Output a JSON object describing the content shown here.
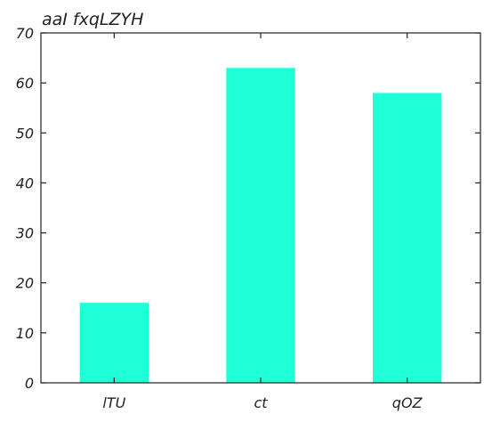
{
  "chart_data": {
    "type": "bar",
    "title": "aaI fxqLZYH",
    "xlabel": "",
    "ylabel": "",
    "categories": [
      "lTU",
      "ct",
      "qOZ"
    ],
    "values": [
      16,
      63,
      58
    ],
    "ylim": [
      0,
      70
    ],
    "yticks": [
      0,
      10,
      20,
      30,
      40,
      50,
      60,
      70
    ],
    "grid": false,
    "legend": "none",
    "bar_color": "#1effd8",
    "axis_color": "#222222"
  }
}
